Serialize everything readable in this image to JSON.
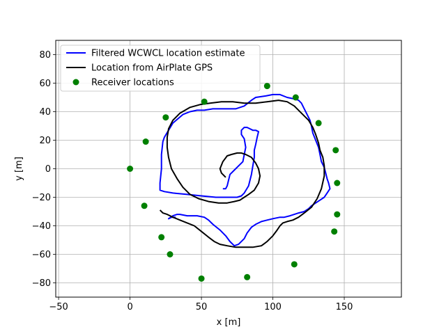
{
  "chart_data": {
    "type": "line",
    "xlabel": "x [m]",
    "ylabel": "y [m]",
    "xlim": [
      -52,
      190
    ],
    "ylim": [
      -90,
      90
    ],
    "xticks": [
      -50,
      0,
      50,
      100,
      150
    ],
    "yticks": [
      -80,
      -60,
      -40,
      -20,
      0,
      20,
      40,
      60,
      80
    ],
    "xtick_labels": [
      "−50",
      "0",
      "50",
      "100",
      "150"
    ],
    "ytick_labels": [
      "−80",
      "−60",
      "−40",
      "−20",
      "0",
      "20",
      "40",
      "60",
      "80"
    ],
    "grid": true,
    "legend_position": "top-left",
    "legend": [
      "Filtered WCWCL location estimate",
      "Location from AirPlate GPS",
      "Receiver locations"
    ],
    "series": [
      {
        "name": "Filtered WCWCL location estimate",
        "color": "#0000ff",
        "style": "line",
        "x": [
          65,
          67,
          68,
          69,
          70,
          73,
          76,
          79,
          80,
          81,
          80,
          78,
          78,
          79,
          80,
          82,
          84,
          86,
          88,
          90,
          89,
          88,
          87,
          87,
          86,
          85,
          83,
          80,
          78,
          75,
          70,
          60,
          50,
          40,
          30,
          24,
          21,
          21,
          22,
          22,
          23,
          24,
          27,
          30,
          37,
          42,
          47,
          52,
          58,
          62,
          68,
          74,
          80,
          85,
          88,
          95,
          100,
          105,
          110,
          115,
          118,
          120,
          122,
          124,
          126,
          127,
          128,
          130,
          132,
          133,
          134,
          136,
          137,
          138,
          139,
          140,
          138,
          136,
          133,
          130,
          127,
          125,
          122,
          118,
          115,
          112,
          108,
          105,
          100,
          96,
          92,
          88,
          85,
          82,
          80,
          76,
          73,
          70,
          67,
          63,
          58,
          55,
          52,
          47,
          43,
          40,
          35,
          33,
          30,
          27,
          29,
          32
        ],
        "y": [
          -14,
          -14,
          -12,
          -8,
          -4,
          -1,
          2,
          5,
          10,
          15,
          21,
          24,
          27,
          28,
          29,
          29,
          28,
          27,
          27,
          26,
          22,
          17,
          13,
          8,
          2,
          -4,
          -12,
          -17,
          -19,
          -20,
          -20,
          -20,
          -19,
          -18,
          -17,
          -16,
          -15,
          -10,
          0,
          10,
          19,
          22,
          27,
          32,
          38,
          40,
          41,
          41,
          42,
          42,
          42,
          42,
          44,
          48,
          50,
          51,
          52,
          52,
          50,
          49,
          48,
          46,
          42,
          38,
          34,
          30,
          25,
          20,
          15,
          10,
          5,
          1,
          -3,
          -7,
          -10,
          -14,
          -17,
          -20,
          -22,
          -24,
          -26,
          -28,
          -30,
          -31,
          -32,
          -33,
          -34,
          -34,
          -35,
          -36,
          -37,
          -39,
          -41,
          -45,
          -49,
          -53,
          -54,
          -51,
          -47,
          -43,
          -39,
          -36,
          -34,
          -33,
          -33,
          -33,
          -32,
          -32,
          -33,
          -35,
          -34,
          -34
        ]
      },
      {
        "name": "Location from AirPlate GPS",
        "color": "#000000",
        "style": "line",
        "x": [
          67,
          64,
          63,
          65,
          68,
          71,
          75,
          78,
          81,
          85,
          88,
          90,
          91,
          90,
          87,
          83,
          80,
          77,
          73,
          68,
          62,
          55,
          48,
          42,
          37,
          33,
          29,
          27,
          26,
          26,
          27,
          30,
          35,
          42,
          49,
          56,
          64,
          72,
          80,
          88,
          96,
          104,
          110,
          115,
          120,
          125,
          128,
          130,
          132,
          133,
          135,
          136,
          136,
          134,
          131,
          127,
          122,
          118,
          114,
          110,
          107,
          105,
          103,
          100,
          96,
          92,
          86,
          80,
          74,
          68,
          63,
          59,
          55,
          50,
          45,
          40,
          35,
          30,
          26,
          23,
          21
        ],
        "y": [
          -6,
          -3,
          0,
          5,
          9,
          10,
          11,
          11,
          10,
          8,
          4,
          0,
          -5,
          -10,
          -15,
          -18,
          -20,
          -22,
          -23,
          -24,
          -24,
          -23,
          -21,
          -18,
          -13,
          -7,
          0,
          8,
          15,
          22,
          28,
          34,
          39,
          43,
          45,
          46,
          47,
          47,
          46,
          46,
          47,
          48,
          47,
          44,
          39,
          34,
          29,
          24,
          18,
          13,
          8,
          2,
          -5,
          -14,
          -21,
          -27,
          -31,
          -34,
          -36,
          -37,
          -38,
          -40,
          -43,
          -47,
          -51,
          -54,
          -55,
          -55,
          -55,
          -54,
          -53,
          -51,
          -48,
          -44,
          -40,
          -38,
          -36,
          -34,
          -32,
          -31,
          -29
        ]
      },
      {
        "name": "Receiver locations",
        "color": "#008000",
        "style": "points",
        "x": [
          0,
          11,
          25,
          52,
          96,
          116,
          132,
          144,
          145,
          145,
          143,
          115,
          82,
          50,
          28,
          22,
          10
        ],
        "y": [
          0,
          19,
          36,
          47,
          58,
          50,
          32,
          13,
          -10,
          -32,
          -44,
          -67,
          -76,
          -77,
          -60,
          -48,
          -26
        ]
      }
    ]
  }
}
